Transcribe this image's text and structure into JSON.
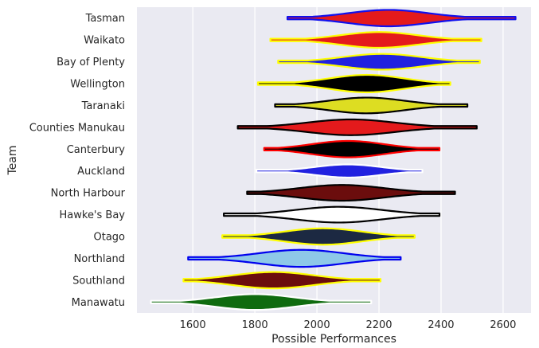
{
  "chart_data": {
    "type": "violin",
    "orientation": "horizontal",
    "xlabel": "Possible Performances",
    "ylabel": "Team",
    "xlim": [
      1420,
      2690
    ],
    "xticks": [
      1600,
      1800,
      2000,
      2200,
      2400,
      2600
    ],
    "grid": true,
    "background": "#eaeaf2",
    "categories": [
      "Tasman",
      "Waikato",
      "Bay of Plenty",
      "Wellington",
      "Taranaki",
      "Counties Manukau",
      "Canterbury",
      "Auckland",
      "North Harbour",
      "Hawke's Bay",
      "Otago",
      "Northland",
      "Southland",
      "Manawatu"
    ],
    "series": [
      {
        "team": "Tasman",
        "fill": "#e41a1c",
        "edge": "#1010ee",
        "min": 1905,
        "max": 2640,
        "center": 2230,
        "width": 0.75,
        "bodyMin": 1960,
        "bodyMax": 2500
      },
      {
        "team": "Waikato",
        "fill": "#e41a1c",
        "edge": "#ffff00",
        "min": 1850,
        "max": 2530,
        "center": 2200,
        "width": 0.72,
        "bodyMin": 1940,
        "bodyMax": 2460
      },
      {
        "team": "Bay of Plenty",
        "fill": "#2121e0",
        "edge": "#ffff00",
        "min": 1875,
        "max": 2525,
        "center": 2210,
        "width": 0.72,
        "bodyMin": 1940,
        "bodyMax": 2470
      },
      {
        "team": "Wellington",
        "fill": "#000000",
        "edge": "#ffff00",
        "min": 1810,
        "max": 2430,
        "center": 2160,
        "width": 0.8,
        "bodyMin": 1900,
        "bodyMax": 2400
      },
      {
        "team": "Taranaki",
        "fill": "#dddd22",
        "edge": "#000000",
        "min": 1865,
        "max": 2485,
        "center": 2160,
        "width": 0.72,
        "bodyMin": 1920,
        "bodyMax": 2430
      },
      {
        "team": "Counties Manukau",
        "fill": "#e41a1c",
        "edge": "#000000",
        "min": 1745,
        "max": 2515,
        "center": 2110,
        "width": 0.72,
        "bodyMin": 1830,
        "bodyMax": 2420
      },
      {
        "team": "Canterbury",
        "fill": "#000000",
        "edge": "#ff0000",
        "min": 1830,
        "max": 2395,
        "center": 2100,
        "width": 0.75,
        "bodyMin": 1870,
        "bodyMax": 2360
      },
      {
        "team": "Auckland",
        "fill": "#2121e0",
        "edge": "#ffffff",
        "min": 1805,
        "max": 2340,
        "center": 2100,
        "width": 0.6,
        "bodyMin": 1870,
        "bodyMax": 2320
      },
      {
        "team": "North Harbour",
        "fill": "#6b0d0d",
        "edge": "#000000",
        "min": 1775,
        "max": 2445,
        "center": 2080,
        "width": 0.72,
        "bodyMin": 1820,
        "bodyMax": 2390
      },
      {
        "team": "Hawke's Bay",
        "fill": "#ffffff",
        "edge": "#000000",
        "min": 1700,
        "max": 2395,
        "center": 2070,
        "width": 0.72,
        "bodyMin": 1760,
        "bodyMax": 2340
      },
      {
        "team": "Otago",
        "fill": "#1c2942",
        "edge": "#ffff00",
        "min": 1695,
        "max": 2315,
        "center": 2020,
        "width": 0.75,
        "bodyMin": 1760,
        "bodyMax": 2280
      },
      {
        "team": "Northland",
        "fill": "#8ec8e8",
        "edge": "#0000ee",
        "min": 1585,
        "max": 2270,
        "center": 1950,
        "width": 0.78,
        "bodyMin": 1660,
        "bodyMax": 2230
      },
      {
        "team": "Southland",
        "fill": "#6b0d0d",
        "edge": "#ffff00",
        "min": 1570,
        "max": 2205,
        "center": 1860,
        "width": 0.75,
        "bodyMin": 1620,
        "bodyMax": 2160
      },
      {
        "team": "Manawatu",
        "fill": "#0f6b0f",
        "edge": "#ffffff",
        "min": 1465,
        "max": 2175,
        "center": 1800,
        "width": 0.72,
        "bodyMin": 1580,
        "bodyMax": 2110
      }
    ]
  }
}
